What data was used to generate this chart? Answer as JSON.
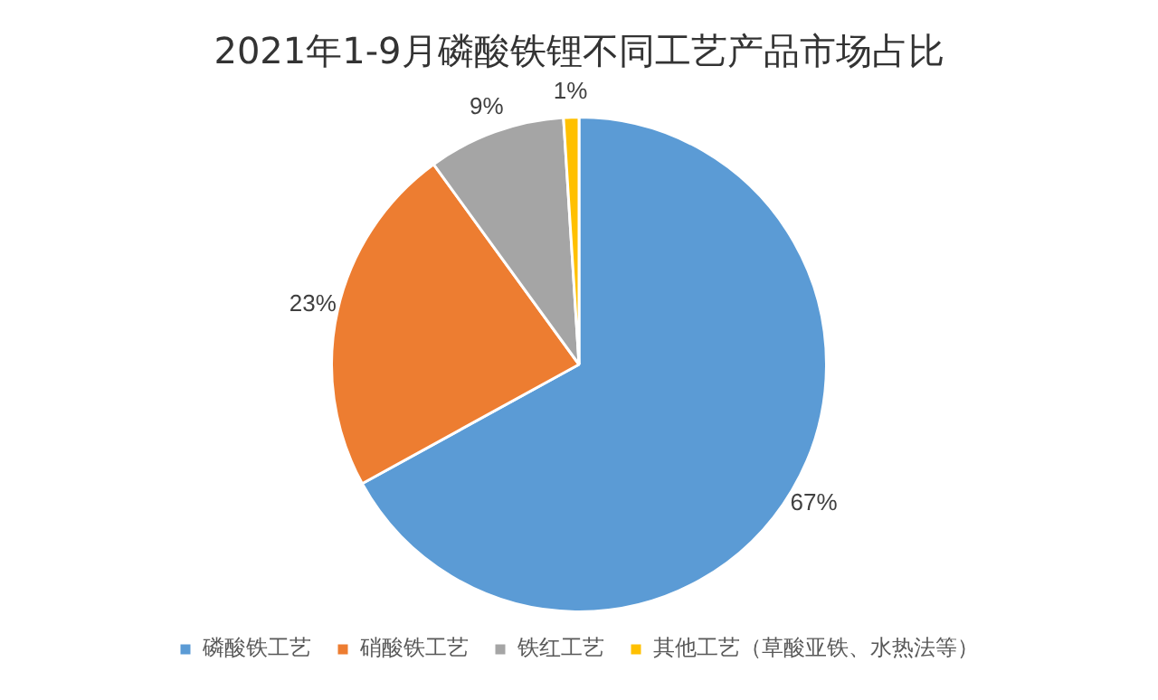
{
  "chart_data": {
    "type": "pie",
    "title": "2021年1-9月磷酸铁锂不同工艺产品市场占比",
    "categories": [
      "磷酸铁工艺",
      "硝酸铁工艺",
      "铁红工艺",
      "其他工艺（草酸亚铁、水热法等）"
    ],
    "values": [
      67,
      23,
      9,
      1
    ],
    "colors": [
      "#5b9bd5",
      "#ed7d31",
      "#a5a5a5",
      "#ffc000"
    ],
    "value_labels": [
      "67%",
      "23%",
      "9%",
      "1%"
    ],
    "legend": "bottom"
  }
}
